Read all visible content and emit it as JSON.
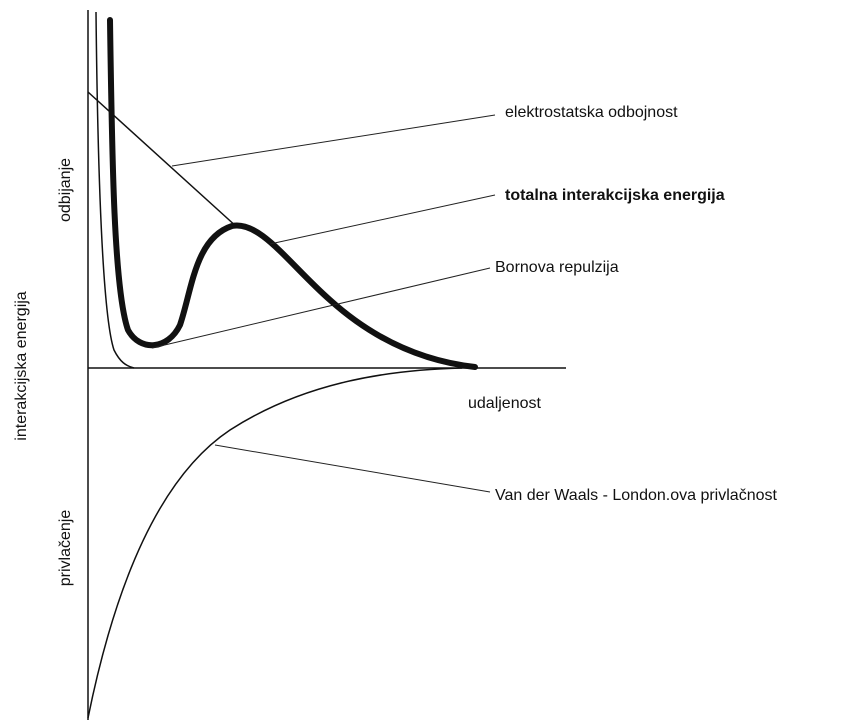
{
  "labels": {
    "electrostatic": "elektrostatska odbojnost",
    "total": "totalna interakcijska energija",
    "born": "Bornova repulzija",
    "distance": "udaljenost",
    "vdw": "Van der Waals - London.ova privlačnost",
    "repulsion": "odbijanje",
    "energy": "interakcijska energija",
    "attraction": "privlačenje"
  }
}
